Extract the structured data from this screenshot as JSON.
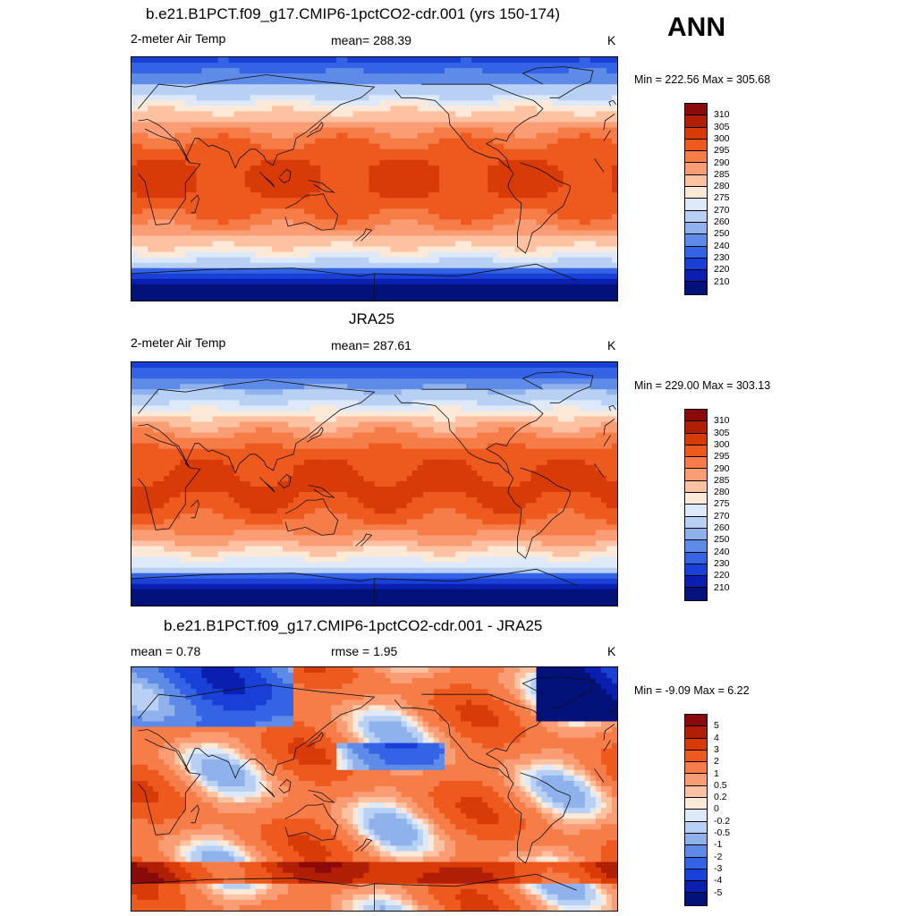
{
  "season": "ANN",
  "panels": [
    {
      "title": "b.e21.B1PCT.f09_g17.CMIP6-1pctCO2-cdr.001 (yrs 150-174)",
      "left_label": "2-meter Air Temp",
      "center_label": "mean= 288.39",
      "right_label": "K",
      "minmax": "Min = 222.56 Max = 305.68",
      "colorbar": {
        "labels": [
          "310",
          "305",
          "300",
          "295",
          "290",
          "285",
          "280",
          "275",
          "270",
          "260",
          "250",
          "240",
          "230",
          "220",
          "210"
        ],
        "colors": [
          "#8a0a0a",
          "#b01e05",
          "#d83a08",
          "#ee5a1e",
          "#f67c48",
          "#fa9d74",
          "#fcc2a2",
          "#fde9d8",
          "#dde9f8",
          "#b8d0f3",
          "#8fb2ec",
          "#5e8ae8",
          "#3563e6",
          "#1940d6",
          "#0a1fb0",
          "#03117a"
        ]
      },
      "field_type": "temp"
    },
    {
      "title": "JRA25",
      "left_label": "2-meter Air Temp",
      "center_label": "mean= 287.61",
      "right_label": "K",
      "minmax": "Min = 229.00 Max = 303.13",
      "colorbar": {
        "labels": [
          "310",
          "305",
          "300",
          "295",
          "290",
          "285",
          "280",
          "275",
          "270",
          "260",
          "250",
          "240",
          "230",
          "220",
          "210"
        ],
        "colors": [
          "#8a0a0a",
          "#b01e05",
          "#d83a08",
          "#ee5a1e",
          "#f67c48",
          "#fa9d74",
          "#fcc2a2",
          "#fde9d8",
          "#dde9f8",
          "#b8d0f3",
          "#8fb2ec",
          "#5e8ae8",
          "#3563e6",
          "#1940d6",
          "#0a1fb0",
          "#03117a"
        ]
      },
      "field_type": "temp"
    },
    {
      "title": "b.e21.B1PCT.f09_g17.CMIP6-1pctCO2-cdr.001 - JRA25",
      "left_label": "mean =   0.78",
      "center_label": "rmse =   1.95",
      "right_label": "K",
      "minmax": "Min =  -9.09 Max =   6.22",
      "colorbar": {
        "labels": [
          "5",
          "4",
          "3",
          "2",
          "1",
          "0.5",
          "0.2",
          "0",
          "-0.2",
          "-0.5",
          "-1",
          "-2",
          "-3",
          "-4",
          "-5"
        ],
        "colors": [
          "#8a0a0a",
          "#b01e05",
          "#d83a08",
          "#ee5a1e",
          "#f67c48",
          "#fa9d74",
          "#fcc2a2",
          "#fde9d8",
          "#dde9f8",
          "#b8d0f3",
          "#8fb2ec",
          "#5e8ae8",
          "#3563e6",
          "#1940d6",
          "#0a1fb0",
          "#03117a"
        ]
      },
      "field_type": "diff"
    }
  ]
}
